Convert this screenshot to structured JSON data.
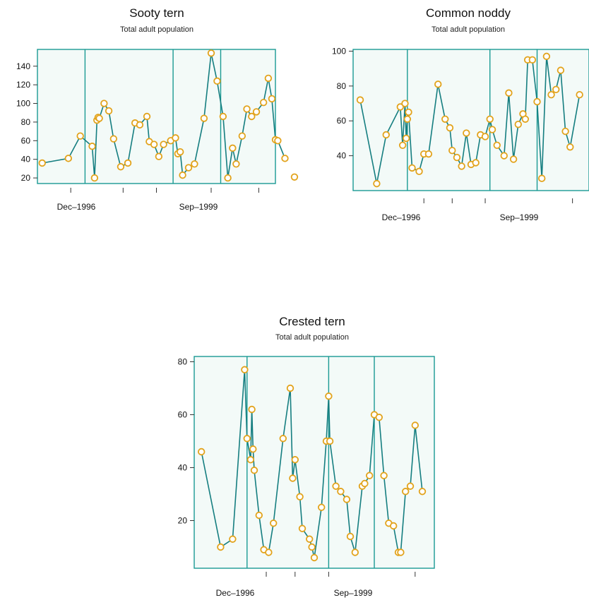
{
  "chart_data": [
    {
      "type": "line",
      "title": "Sooty tern",
      "subtitle": "Total adult population",
      "xtick_labels": [
        "Dec–1996",
        "Sep–1999"
      ],
      "yticks": [
        20,
        40,
        60,
        80,
        100,
        120,
        140
      ],
      "ylim": [
        14,
        158
      ],
      "marker_color": "#e2a31c",
      "line_color": "#157e80",
      "values": [
        36,
        41,
        65,
        54,
        20,
        82,
        85,
        84,
        100,
        92,
        62,
        32,
        36,
        79,
        77,
        86,
        59,
        56,
        43,
        56,
        60,
        63,
        46,
        48,
        23,
        31,
        35,
        84,
        154,
        124,
        86,
        20,
        52,
        35,
        65,
        94,
        86,
        91,
        101,
        127,
        105,
        61,
        60,
        41,
        21
      ],
      "x_frac": [
        0.02,
        0.13,
        0.18,
        0.23,
        0.24,
        0.25,
        0.255,
        0.26,
        0.28,
        0.3,
        0.32,
        0.35,
        0.38,
        0.41,
        0.43,
        0.46,
        0.47,
        0.49,
        0.51,
        0.53,
        0.56,
        0.58,
        0.59,
        0.6,
        0.61,
        0.635,
        0.66,
        0.7,
        0.73,
        0.755,
        0.78,
        0.8,
        0.82,
        0.835,
        0.86,
        0.88,
        0.9,
        0.92,
        0.95,
        0.97,
        0.985,
        1.0,
        1.01,
        1.04,
        1.08
      ],
      "separators_frac": [
        0.2,
        0.57,
        0.77
      ],
      "xticks_frac": [
        0.14,
        0.36,
        0.5,
        0.73,
        0.93
      ]
    },
    {
      "type": "line",
      "title": "Common noddy",
      "subtitle": "Total adult population",
      "xtick_labels": [
        "Dec–1996",
        "Sep–1999"
      ],
      "yticks": [
        40,
        60,
        80,
        100
      ],
      "ylim": [
        20,
        101
      ],
      "marker_color": "#e2a31c",
      "line_color": "#157e80",
      "values": [
        72,
        24,
        52,
        68,
        46,
        70,
        50,
        61,
        65,
        33,
        31,
        41,
        41,
        81,
        61,
        56,
        43,
        39,
        34,
        53,
        35,
        36,
        52,
        51,
        61,
        55,
        46,
        40,
        76,
        38,
        58,
        64,
        61,
        95,
        95,
        71,
        27,
        97,
        75,
        78,
        89,
        54,
        45,
        75
      ],
      "x_frac": [
        0.03,
        0.1,
        0.14,
        0.2,
        0.21,
        0.22,
        0.225,
        0.23,
        0.235,
        0.25,
        0.28,
        0.3,
        0.32,
        0.36,
        0.39,
        0.41,
        0.42,
        0.44,
        0.46,
        0.48,
        0.5,
        0.52,
        0.54,
        0.56,
        0.58,
        0.59,
        0.61,
        0.64,
        0.66,
        0.68,
        0.7,
        0.72,
        0.73,
        0.74,
        0.76,
        0.78,
        0.8,
        0.82,
        0.84,
        0.86,
        0.88,
        0.9,
        0.92,
        0.96
      ],
      "separators_frac": [
        0.23,
        0.58,
        0.78
      ],
      "xticks_frac": [
        0.3,
        0.42,
        0.56,
        0.93
      ]
    },
    {
      "type": "line",
      "title": "Crested tern",
      "subtitle": "Total adult population",
      "xtick_labels": [
        "Dec–1996",
        "Sep–1999"
      ],
      "yticks": [
        20,
        40,
        60,
        80
      ],
      "ylim": [
        2,
        82
      ],
      "marker_color": "#e2a31c",
      "line_color": "#157e80",
      "values": [
        46,
        10,
        13,
        77,
        51,
        43,
        62,
        47,
        39,
        22,
        9,
        8,
        19,
        51,
        70,
        36,
        43,
        29,
        17,
        13,
        10,
        6,
        25,
        50,
        67,
        50,
        33,
        31,
        28,
        14,
        8,
        33,
        34,
        37,
        60,
        59,
        37,
        19,
        18,
        8,
        8,
        31,
        33,
        56,
        31
      ],
      "x_frac": [
        0.03,
        0.11,
        0.16,
        0.21,
        0.22,
        0.235,
        0.24,
        0.245,
        0.25,
        0.27,
        0.29,
        0.31,
        0.33,
        0.37,
        0.4,
        0.41,
        0.42,
        0.44,
        0.45,
        0.48,
        0.49,
        0.5,
        0.53,
        0.55,
        0.56,
        0.565,
        0.59,
        0.61,
        0.635,
        0.65,
        0.67,
        0.7,
        0.71,
        0.73,
        0.75,
        0.77,
        0.79,
        0.81,
        0.83,
        0.85,
        0.86,
        0.88,
        0.9,
        0.92,
        0.95
      ],
      "separators_frac": [
        0.22,
        0.56,
        0.75
      ],
      "xticks_frac": [
        0.3,
        0.42,
        0.56,
        0.92
      ]
    }
  ]
}
